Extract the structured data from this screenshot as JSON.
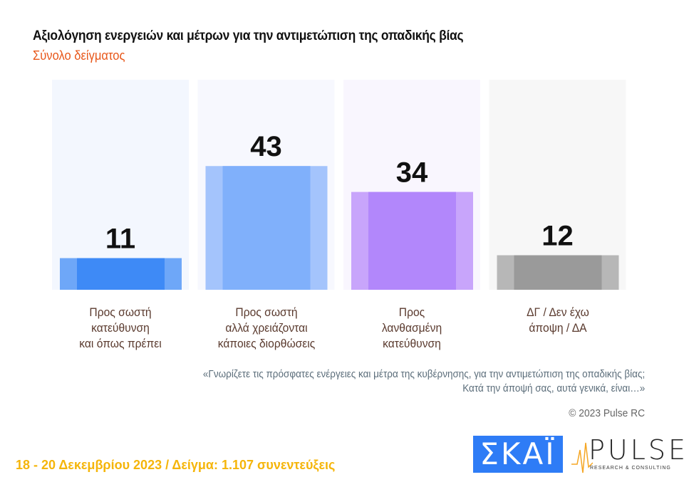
{
  "header": {
    "title": "Αξιολόγηση ενεργειών και μέτρων για την αντιμετώπιση της οπαδικής βίας",
    "subtitle": "Σύνολο δείγματος"
  },
  "chart_data": {
    "type": "bar",
    "categories": [
      "Προς σωστή κατεύθυνση και όπως πρέπει",
      "Προς σωστή αλλά χρειάζονται κάποιες διορθώσεις",
      "Προς λανθασμένη κατεύθυνση",
      "ΔΓ / Δεν έχω άποψη / ΔΑ"
    ],
    "category_lines": [
      [
        "Προς σωστή",
        "κατεύθυνση",
        "και όπως πρέπει"
      ],
      [
        "Προς σωστή",
        "αλλά χρειάζονται",
        "κάποιες διορθώσεις"
      ],
      [
        "Προς",
        "λανθασμένη",
        "κατεύθυνση"
      ],
      [
        "ΔΓ / Δεν έχω",
        "άποψη / ΔΑ"
      ]
    ],
    "values": [
      11,
      43,
      34,
      12
    ],
    "labels": [
      "11",
      "43",
      "34",
      "12"
    ],
    "colors": [
      {
        "outer": "#6ea7f8",
        "inner": "#3e8af6",
        "panel": "#f3f7fe"
      },
      {
        "outer": "#a4c4fc",
        "inner": "#80b0fb",
        "panel": "#f7f8fe"
      },
      {
        "outer": "#c8a5fb",
        "inner": "#b287fb",
        "panel": "#f9f6fe"
      },
      {
        "outer": "#b7b7b7",
        "inner": "#9a9a9a",
        "panel": "#f7f7f7"
      }
    ],
    "ylim": [
      0,
      73
    ],
    "grid": false,
    "title": "Αξιολόγηση ενεργειών και μέτρων για την αντιμετώπιση της οπαδικής βίας"
  },
  "question": {
    "line1": "«Γνωρίζετε τις πρόσφατες ενέργειες και μέτρα της κυβέρνησης, για την αντιμετώπιση της οπαδικής βίας;",
    "line2": "Κατά την άποψή σας, αυτά γενικά, είναι…»"
  },
  "copyright": "© 2023 Pulse RC",
  "footer": "18 - 20  Δεκεμβρίου  2023  /  Δείγμα:  1.107 συνεντεύξεις",
  "logos": {
    "skai": "ΣΚΑΪ",
    "pulse": "PULSE",
    "pulse_sub": "RESEARCH & CONSULTING"
  }
}
